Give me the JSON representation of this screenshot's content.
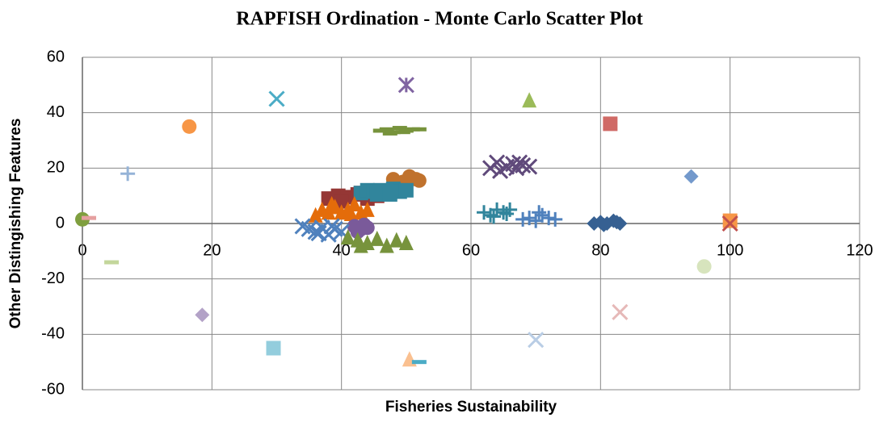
{
  "chart_data": {
    "type": "scatter",
    "title": "RAPFISH Ordination - Monte Carlo Scatter Plot",
    "x_label": "Fisheries Sustainability",
    "y_label": "Other Distingishing Features",
    "xlim": [
      0,
      120
    ],
    "ylim": [
      -60,
      60
    ],
    "xticks": [
      0,
      20,
      40,
      60,
      80,
      100,
      120
    ],
    "yticks": [
      -60,
      -40,
      -20,
      0,
      20,
      40,
      60
    ],
    "grid": true,
    "series": [
      {
        "color": "#7f9f3f",
        "marker": "circle",
        "x": [
          0
        ],
        "values": [
          1.5
        ]
      },
      {
        "color": "#e6a0a0",
        "marker": "dash",
        "x": [
          1
        ],
        "values": [
          2
        ]
      },
      {
        "color": "#95b3d7",
        "marker": "plus",
        "x": [
          7
        ],
        "values": [
          18
        ]
      },
      {
        "color": "#c3d69b",
        "marker": "dash",
        "x": [
          4.5
        ],
        "values": [
          -14
        ]
      },
      {
        "color": "#f79646",
        "marker": "circle",
        "x": [
          16.5
        ],
        "values": [
          35
        ]
      },
      {
        "color": "#b3a2c7",
        "marker": "diamond",
        "x": [
          18.5
        ],
        "values": [
          -33
        ]
      },
      {
        "color": "#4bacc6",
        "marker": "x",
        "x": [
          30
        ],
        "values": [
          45
        ]
      },
      {
        "color": "#93cddd",
        "marker": "square",
        "x": [
          29.5
        ],
        "values": [
          -45
        ]
      },
      {
        "color": "#8064a2",
        "marker": "star",
        "x": [
          50
        ],
        "values": [
          50
        ]
      },
      {
        "color": "#77933c",
        "marker": "dash",
        "x": [
          46,
          47,
          48,
          49,
          50,
          51,
          52,
          47.5,
          49.5
        ],
        "values": [
          33.5,
          34,
          33,
          34.5,
          33.5,
          34,
          34,
          32.5,
          33
        ]
      },
      {
        "color": "#9bbb59",
        "marker": "triangle",
        "x": [
          69
        ],
        "values": [
          44.5
        ]
      },
      {
        "color": "#d06a66",
        "marker": "square",
        "x": [
          81.5
        ],
        "values": [
          36
        ]
      },
      {
        "color": "#604a7b",
        "marker": "x",
        "x": [
          63,
          64,
          65.5,
          66.5,
          67,
          68,
          69,
          64.5,
          67.5
        ],
        "values": [
          20,
          22,
          20.5,
          21.5,
          20,
          21,
          20.5,
          19,
          22
        ]
      },
      {
        "color": "#7399cc",
        "marker": "diamond",
        "x": [
          94
        ],
        "values": [
          17
        ]
      },
      {
        "color": "#31859c",
        "marker": "plus",
        "x": [
          62,
          63,
          64,
          65,
          66,
          63.5,
          65.5
        ],
        "values": [
          4,
          3,
          5,
          4,
          5,
          2.5,
          3.5
        ]
      },
      {
        "color": "#4f81bd",
        "marker": "plus",
        "x": [
          68,
          69,
          70,
          71,
          72,
          73,
          70.5
        ],
        "values": [
          1.5,
          2,
          1,
          3,
          2,
          1.5,
          4
        ]
      },
      {
        "color": "#366092",
        "marker": "diamond",
        "x": [
          79,
          80,
          81,
          82,
          83,
          80.5,
          82.5
        ],
        "values": [
          0,
          0.5,
          0,
          1,
          0,
          -0.5,
          0.5
        ]
      },
      {
        "color": "#f79646",
        "marker": "square",
        "x": [
          100
        ],
        "values": [
          1
        ]
      },
      {
        "color": "#c0504d",
        "marker": "x",
        "x": [
          100
        ],
        "values": [
          0
        ]
      },
      {
        "color": "#d7e4bd",
        "marker": "circle",
        "x": [
          96
        ],
        "values": [
          -15.5
        ]
      },
      {
        "color": "#e6b9b8",
        "marker": "x",
        "x": [
          83
        ],
        "values": [
          -32
        ]
      },
      {
        "color": "#b9cde5",
        "marker": "x",
        "x": [
          70
        ],
        "values": [
          -42
        ]
      },
      {
        "color": "#fac090",
        "marker": "triangle",
        "x": [
          50.5
        ],
        "values": [
          -49
        ]
      },
      {
        "color": "#4bacc6",
        "marker": "dash",
        "x": [
          52
        ],
        "values": [
          -50
        ]
      },
      {
        "color": "#953735",
        "marker": "square",
        "x": [
          38,
          39.5,
          41,
          42.5,
          44,
          45.5,
          40,
          43
        ],
        "values": [
          9,
          10,
          9.5,
          10.5,
          9,
          10,
          8,
          11
        ]
      },
      {
        "color": "#c0722d",
        "marker": "circle",
        "x": [
          48,
          49.5,
          50.5,
          51.5,
          52,
          49
        ],
        "values": [
          16,
          15,
          17,
          16,
          15.5,
          14
        ]
      },
      {
        "color": "#31859c",
        "marker": "square",
        "x": [
          43,
          44,
          45,
          46,
          47,
          48,
          49,
          50,
          45.5,
          47.5
        ],
        "values": [
          11,
          12,
          11.5,
          12,
          11,
          12.5,
          11.5,
          12,
          10.5,
          10.5
        ]
      },
      {
        "color": "#e46c0a",
        "marker": "triangle",
        "x": [
          36,
          37,
          38,
          39,
          40,
          41,
          42,
          43,
          44,
          38.5,
          41.5
        ],
        "values": [
          3,
          5,
          4,
          6,
          4,
          5,
          7,
          4,
          5,
          7,
          3.5
        ]
      },
      {
        "color": "#7a5a9a",
        "marker": "circle",
        "x": [
          42,
          43,
          44,
          42.5,
          43.5
        ],
        "values": [
          -1,
          -2,
          -1.5,
          -3,
          -0.5
        ]
      },
      {
        "color": "#4f81bd",
        "marker": "x",
        "x": [
          34,
          35,
          36,
          37,
          38,
          39,
          40,
          36.5,
          38.5
        ],
        "values": [
          -1,
          -2,
          -3,
          -1.5,
          -4,
          -2,
          -3,
          -3.5,
          -1
        ]
      },
      {
        "color": "#77933c",
        "marker": "triangle",
        "x": [
          41,
          42.5,
          44,
          45.5,
          47,
          48.5,
          50,
          43
        ],
        "values": [
          -5,
          -6,
          -7,
          -5.5,
          -8,
          -6,
          -7,
          -8
        ]
      }
    ]
  }
}
